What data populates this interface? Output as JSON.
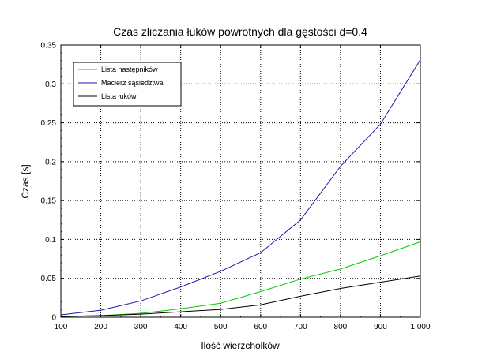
{
  "chart_data": {
    "type": "line",
    "title": "Czas zliczania łuków powrotnych dla gęstości d=0.4",
    "xlabel": "Ilość wierzchołków",
    "ylabel": "Czas [s]",
    "x": [
      100,
      200,
      300,
      400,
      500,
      600,
      700,
      800,
      900,
      1000
    ],
    "xlim": [
      100,
      1000
    ],
    "ylim": [
      0,
      0.35
    ],
    "x_ticks": [
      100,
      200,
      300,
      400,
      500,
      600,
      700,
      800,
      900,
      1000
    ],
    "x_tick_labels": [
      "100",
      "200",
      "300",
      "400",
      "500",
      "600",
      "700",
      "800",
      "900",
      "1 000"
    ],
    "y_ticks": [
      0,
      0.05,
      0.1,
      0.15,
      0.2,
      0.25,
      0.3,
      0.35
    ],
    "y_tick_labels": [
      "0",
      "0.05",
      "0.1",
      "0.15",
      "0.2",
      "0.25",
      "0.3",
      "0.35"
    ],
    "grid": true,
    "legend_position": "top-left",
    "series": [
      {
        "name": "Lista następników",
        "color": "#00cc00",
        "values": [
          0.001,
          0.002,
          0.005,
          0.011,
          0.018,
          0.033,
          0.049,
          0.062,
          0.079,
          0.097
        ]
      },
      {
        "name": "Macierz sąsiedztwa",
        "color": "#1a1ab0",
        "values": [
          0.003,
          0.009,
          0.021,
          0.039,
          0.059,
          0.083,
          0.125,
          0.194,
          0.248,
          0.331
        ]
      },
      {
        "name": "Lista łuków",
        "color": "#000000",
        "values": [
          0.001,
          0.002,
          0.004,
          0.007,
          0.01,
          0.016,
          0.027,
          0.037,
          0.045,
          0.053
        ]
      }
    ]
  }
}
